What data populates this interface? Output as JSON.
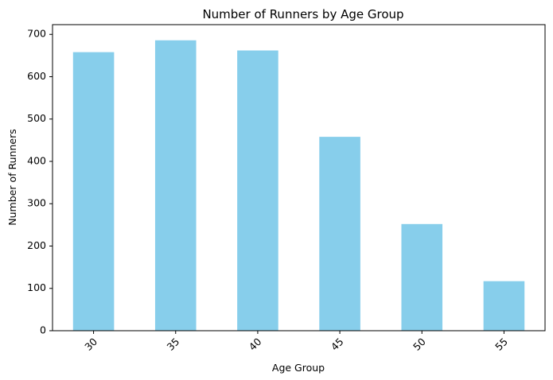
{
  "chart_data": {
    "type": "bar",
    "title": "Number of Runners by Age Group",
    "xlabel": "Age Group",
    "ylabel": "Number of Runners",
    "categories": [
      "30",
      "35",
      "40",
      "45",
      "50",
      "55"
    ],
    "values": [
      658,
      686,
      662,
      458,
      252,
      117
    ],
    "ylim": [
      0,
      723
    ],
    "yticks": [
      "0",
      "100",
      "200",
      "300",
      "400",
      "500",
      "600",
      "700"
    ],
    "bar_color": "#87ceeb",
    "grid": false,
    "legend": "none",
    "xtick_rotation": 45
  }
}
